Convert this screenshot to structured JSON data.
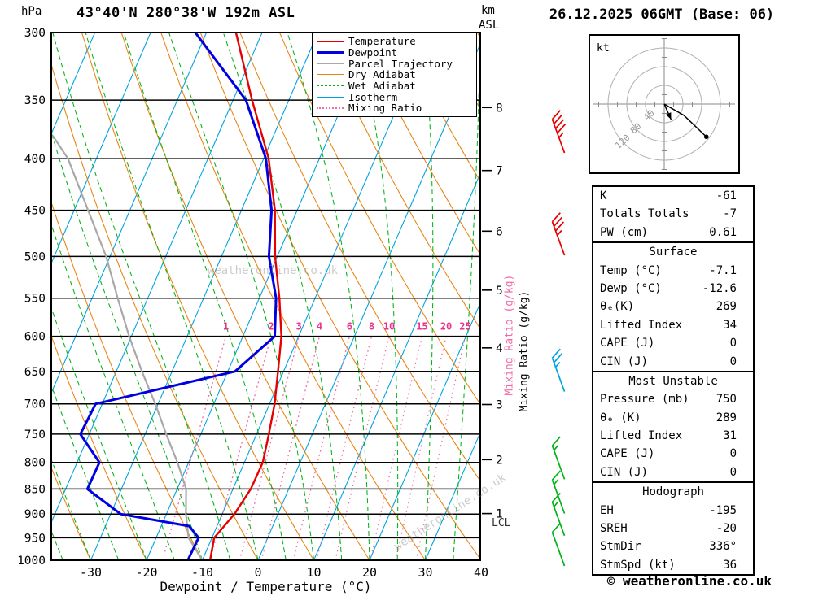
{
  "header": {
    "station_title": "43°40'N 280°38'W 192m ASL",
    "date_title": "26.12.2025 06GMT (Base: 06)"
  },
  "labels": {
    "pressure_unit": "hPa",
    "km": "km",
    "asl": "ASL",
    "x_axis": "Dewpoint / Temperature (°C)",
    "mixing_ratio_axis": "Mixing Ratio (g/kg)",
    "lcl": "LCL",
    "hodograph_unit": "kt"
  },
  "footer": {
    "copyright": "© weatheronline.co.uk",
    "watermark": "weatheronline.co.uk"
  },
  "legend": {
    "items": [
      {
        "label": "Temperature",
        "color": "#e60000",
        "style": "solid",
        "width": 2.5
      },
      {
        "label": "Dewpoint",
        "color": "#0000e0",
        "style": "solid",
        "width": 3
      },
      {
        "label": "Parcel Trajectory",
        "color": "#a8a8a8",
        "style": "solid",
        "width": 2
      },
      {
        "label": "Dry Adiabat",
        "color": "#e8820e",
        "style": "solid",
        "width": 1.5
      },
      {
        "label": "Wet Adiabat",
        "color": "#00b414",
        "style": "dashed",
        "width": 1.5
      },
      {
        "label": "Isotherm",
        "color": "#00a3e0",
        "style": "solid",
        "width": 1.5
      },
      {
        "label": "Mixing Ratio",
        "color": "#f06ca8",
        "style": "dotted",
        "width": 2
      }
    ]
  },
  "table": {
    "sections": [
      {
        "header": null,
        "rows": [
          [
            "K",
            "-61"
          ],
          [
            "Totals Totals",
            "-7"
          ],
          [
            "PW (cm)",
            "0.61"
          ]
        ]
      },
      {
        "header": "Surface",
        "rows": [
          [
            "Temp (°C)",
            "-7.1"
          ],
          [
            "Dewp (°C)",
            "-12.6"
          ],
          [
            "θₑ(K)",
            "269"
          ],
          [
            "Lifted Index",
            "34"
          ],
          [
            "CAPE (J)",
            "0"
          ],
          [
            "CIN (J)",
            "0"
          ]
        ]
      },
      {
        "header": "Most Unstable",
        "rows": [
          [
            "Pressure (mb)",
            "750"
          ],
          [
            "θₑ (K)",
            "289"
          ],
          [
            "Lifted Index",
            "31"
          ],
          [
            "CAPE (J)",
            "0"
          ],
          [
            "CIN (J)",
            "0"
          ]
        ]
      },
      {
        "header": "Hodograph",
        "rows": [
          [
            "EH",
            "-195"
          ],
          [
            "SREH",
            "-20"
          ],
          [
            "StmDir",
            "336°"
          ],
          [
            "StmSpd (kt)",
            "36"
          ]
        ]
      }
    ]
  },
  "chart_data": [
    {
      "type": "skewt",
      "title": "43°40'N 280°38'W 192m ASL",
      "x_axis": {
        "label": "Dewpoint / Temperature (°C)",
        "ticks": [
          -30,
          -20,
          -10,
          0,
          10,
          20,
          30,
          40
        ],
        "unit": "°C"
      },
      "pressure_axis": {
        "unit": "hPa",
        "ticks": [
          300,
          350,
          400,
          450,
          500,
          550,
          600,
          650,
          700,
          750,
          800,
          850,
          900,
          950,
          1000
        ]
      },
      "altitude_axis": {
        "unit": "km ASL",
        "ticks": [
          {
            "km": 1,
            "hpa": 899
          },
          {
            "km": 2,
            "hpa": 795
          },
          {
            "km": 3,
            "hpa": 701
          },
          {
            "km": 4,
            "hpa": 616
          },
          {
            "km": 5,
            "hpa": 540
          },
          {
            "km": 6,
            "hpa": 472
          },
          {
            "km": 7,
            "hpa": 411
          },
          {
            "km": 8,
            "hpa": 356
          }
        ]
      },
      "isotherms": {
        "min": -110,
        "max": 40,
        "step": 10
      },
      "dry_adiabats": {
        "min": -40,
        "max": 110,
        "step": 10
      },
      "wet_adiabats": {
        "min": -60,
        "max": 40,
        "step": 5
      },
      "mixing_ratio_lines": [
        1,
        2,
        3,
        4,
        6,
        8,
        10,
        15,
        20,
        25
      ],
      "temperature_profile": [
        [
          1000,
          -8.6
        ],
        [
          950,
          -9.6
        ],
        [
          900,
          -7.8
        ],
        [
          850,
          -6.8
        ],
        [
          800,
          -6.7
        ],
        [
          750,
          -7.8
        ],
        [
          700,
          -9.1
        ],
        [
          650,
          -11.0
        ],
        [
          600,
          -13.1
        ],
        [
          550,
          -16.4
        ],
        [
          500,
          -20.4
        ],
        [
          450,
          -24.0
        ],
        [
          400,
          -29.1
        ],
        [
          350,
          -36.6
        ],
        [
          300,
          -44.7
        ]
      ],
      "dewpoint_profile": [
        [
          1000,
          -12.6
        ],
        [
          950,
          -12.4
        ],
        [
          925,
          -15.0
        ],
        [
          900,
          -28.2
        ],
        [
          850,
          -36.1
        ],
        [
          800,
          -36.0
        ],
        [
          750,
          -41.6
        ],
        [
          700,
          -41.2
        ],
        [
          650,
          -18.7
        ],
        [
          600,
          -14.3
        ],
        [
          550,
          -17.0
        ],
        [
          500,
          -21.5
        ],
        [
          450,
          -24.6
        ],
        [
          400,
          -29.6
        ],
        [
          350,
          -37.7
        ],
        [
          300,
          -52.0
        ]
      ],
      "parcel_profile": [
        [
          1000,
          -10.0
        ],
        [
          950,
          -14.2
        ],
        [
          900,
          -16.5
        ],
        [
          850,
          -18.4
        ],
        [
          800,
          -22.0
        ],
        [
          750,
          -26.2
        ],
        [
          700,
          -30.5
        ],
        [
          650,
          -35.4
        ],
        [
          600,
          -40.4
        ],
        [
          550,
          -45.4
        ],
        [
          500,
          -50.7
        ],
        [
          450,
          -57.5
        ],
        [
          400,
          -65.1
        ],
        [
          380,
          -69.5
        ]
      ],
      "lcl_hpa": 920,
      "surface": {
        "temp_c": -7.1,
        "dewp_c": -12.6
      },
      "wind_barbs": [
        {
          "hpa": 380,
          "speed_kt": 45,
          "color": "#e60000"
        },
        {
          "hpa": 480,
          "speed_kt": 35,
          "color": "#e60000"
        },
        {
          "hpa": 655,
          "speed_kt": 25,
          "color": "#00a3e0"
        },
        {
          "hpa": 800,
          "speed_kt": 15,
          "color": "#00b414"
        },
        {
          "hpa": 865,
          "speed_kt": 15,
          "color": "#00b414"
        },
        {
          "hpa": 910,
          "speed_kt": 15,
          "color": "#00b414"
        },
        {
          "hpa": 975,
          "speed_kt": 10,
          "color": "#00b414"
        }
      ],
      "colors": {
        "temperature": "#e60000",
        "dewpoint": "#0000e0",
        "parcel": "#a8a8a8",
        "dry_adiabat": "#e8820e",
        "wet_adiabat": "#00b414",
        "isotherm": "#00a3e0",
        "mixing_ratio": "#f06ca8",
        "mixing_ratio_label": "#e8358f",
        "isobar": "#000000"
      }
    },
    {
      "type": "hodograph",
      "unit": "kt",
      "rings_kt": [
        40,
        80,
        120
      ],
      "trace_kt": [
        [
          0,
          0
        ],
        [
          42,
          24
        ],
        [
          90,
          70
        ]
      ],
      "end_marker_kt": [
        90,
        70
      ],
      "storm_motion": {
        "dir_deg": 336,
        "speed_kt": 36
      }
    }
  ]
}
